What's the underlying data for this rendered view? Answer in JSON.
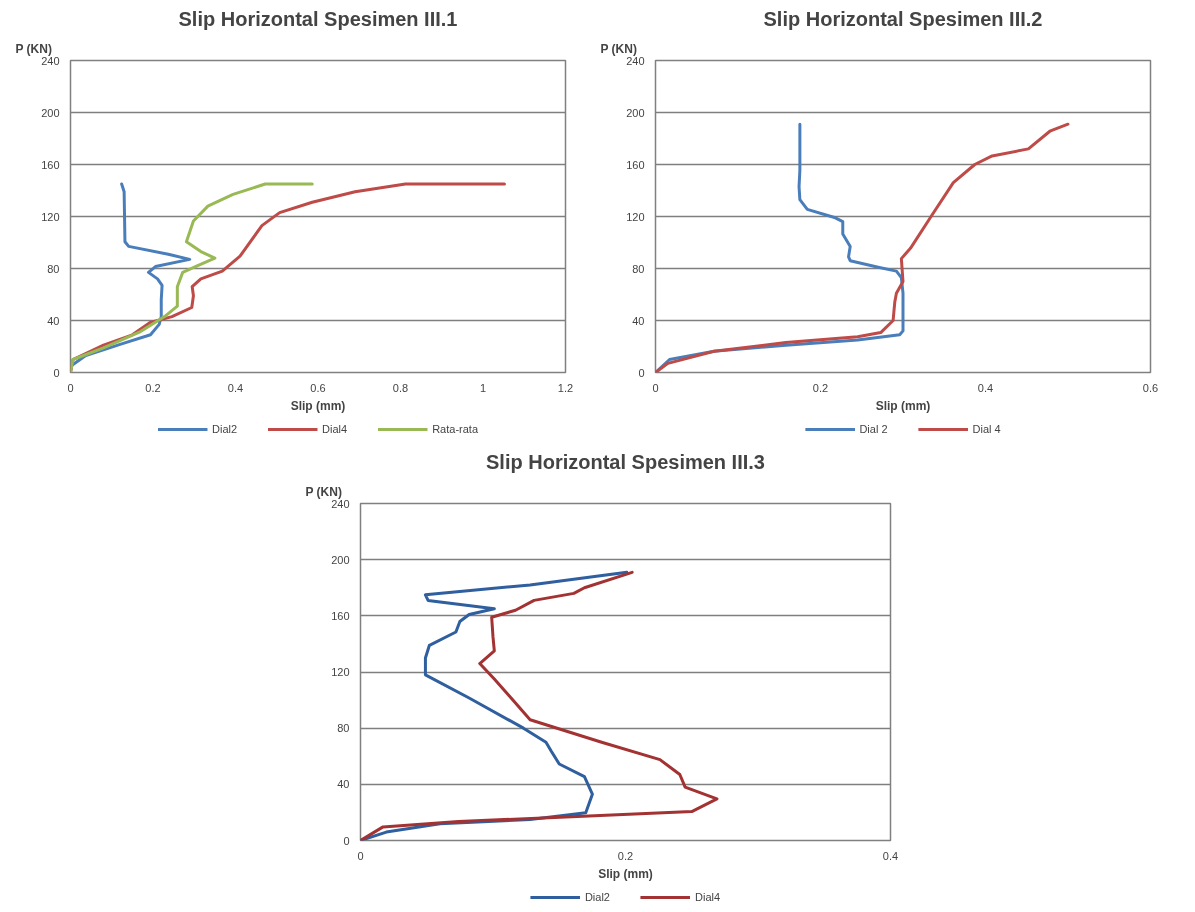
{
  "chart_data": [
    {
      "type": "line",
      "title": "Slip Horizontal Spesimen III.1",
      "xlabel": "Slip (mm)",
      "ylabel": "P (KN)",
      "xlim": [
        0,
        1.2
      ],
      "xticks": [
        0,
        0.2,
        0.4,
        0.6,
        0.8,
        1,
        1.2
      ],
      "ylim": [
        0,
        240
      ],
      "yticks": [
        0,
        40,
        80,
        120,
        160,
        200,
        240
      ],
      "grid": "y",
      "legend": "bottom",
      "marker": "none",
      "line_style": "solid",
      "series": [
        {
          "name": "Dial2",
          "color": "#4a7ebb",
          "x": [
            0,
            0.001,
            0.037,
            0.124,
            0.194,
            0.215,
            0.22,
            0.22,
            0.222,
            0.211,
            0.189,
            0.206,
            0.289,
            0.237,
            0.141,
            0.132,
            0.131,
            0.13,
            0.124
          ],
          "values": [
            0,
            5,
            13,
            22,
            29,
            37,
            43,
            56,
            67,
            72,
            77,
            81.5,
            87,
            91,
            97,
            100.6,
            120,
            139,
            145
          ]
        },
        {
          "name": "Dial4",
          "color": "#be4b48",
          "x": [
            0,
            0.006,
            0.08,
            0.15,
            0.193,
            0.246,
            0.294,
            0.298,
            0.295,
            0.316,
            0.368,
            0.411,
            0.464,
            0.507,
            0.586,
            0.69,
            0.812,
            0.847,
            1.052
          ],
          "values": [
            0,
            10,
            21,
            29,
            38.5,
            43,
            50,
            59,
            66,
            72,
            78,
            89.5,
            113,
            123,
            131,
            139,
            145,
            145,
            145
          ]
        },
        {
          "name": "Rata-rata",
          "color": "#98b954",
          "x": [
            0,
            0.006,
            0.08,
            0.167,
            0.228,
            0.259,
            0.259,
            0.272,
            0.307,
            0.35,
            0.316,
            0.281,
            0.298,
            0.333,
            0.394,
            0.472,
            0.49,
            0.586
          ],
          "values": [
            0,
            10,
            19,
            31,
            43,
            51,
            66,
            77,
            82,
            88,
            93,
            100.6,
            116.5,
            128,
            137,
            145,
            145,
            145
          ]
        }
      ]
    },
    {
      "type": "line",
      "title": "Slip Horizontal Spesimen III.2",
      "xlabel": "Slip (mm)",
      "ylabel": "P (KN)",
      "xlim": [
        0,
        0.6
      ],
      "xticks": [
        0,
        0.2,
        0.4,
        0.6
      ],
      "ylim": [
        0,
        240
      ],
      "yticks": [
        0,
        40,
        80,
        120,
        160,
        200,
        240
      ],
      "grid": "y",
      "legend": "bottom",
      "marker": "none",
      "line_style": "solid",
      "series": [
        {
          "name": "Dial 2",
          "color": "#4a7ebb",
          "x": [
            0,
            0.017,
            0.071,
            0.158,
            0.245,
            0.296,
            0.3,
            0.3,
            0.298,
            0.292,
            0.27,
            0.236,
            0.234,
            0.236,
            0.227,
            0.227,
            0.218,
            0.184,
            0.175,
            0.174,
            0.175,
            0.175
          ],
          "values": [
            0,
            10,
            16.4,
            21,
            25,
            29,
            32,
            61,
            73,
            78,
            81,
            86,
            89,
            97,
            106.5,
            116,
            119,
            125.5,
            133,
            143,
            155.6,
            191
          ]
        },
        {
          "name": "Dial 4",
          "color": "#be4b48",
          "x": [
            0,
            0.015,
            0.071,
            0.158,
            0.245,
            0.273,
            0.288,
            0.29,
            0.292,
            0.3,
            0.298,
            0.309,
            0.335,
            0.361,
            0.387,
            0.408,
            0.452,
            0.478,
            0.5
          ],
          "values": [
            0,
            7,
            16.4,
            23,
            27.5,
            30.7,
            40,
            54,
            61,
            70,
            87.6,
            95.5,
            121,
            146,
            160,
            166.6,
            172,
            185.6,
            191
          ]
        }
      ]
    },
    {
      "type": "line",
      "title": "Slip Horizontal Spesimen III.3",
      "xlabel": "Slip (mm)",
      "ylabel": "P (KN)",
      "xlim": [
        0,
        0.4
      ],
      "xticks": [
        0,
        0.2,
        0.4
      ],
      "ylim": [
        0,
        240
      ],
      "yticks": [
        0,
        40,
        80,
        120,
        160,
        200,
        240
      ],
      "grid": "y",
      "legend": "bottom",
      "marker": "none",
      "line_style": "solid",
      "series": [
        {
          "name": "Dial2",
          "color": "#2f5f9e",
          "x": [
            0,
            0.0195,
            0.06,
            0.128,
            0.17,
            0.175,
            0.169,
            0.15,
            0.144,
            0.14,
            0.123,
            0.082,
            0.049,
            0.049,
            0.052,
            0.072,
            0.075,
            0.082,
            0.101,
            0.051,
            0.049,
            0.128,
            0.201
          ],
          "values": [
            0,
            6,
            12,
            15,
            19.7,
            33,
            45.5,
            54.5,
            63.6,
            70,
            80,
            101.5,
            118,
            130,
            139,
            148.5,
            156,
            161,
            165,
            171,
            175,
            182,
            191
          ]
        },
        {
          "name": "Dial4",
          "color": "#a33233",
          "x": [
            0,
            0.017,
            0.074,
            0.155,
            0.25,
            0.269,
            0.245,
            0.241,
            0.226,
            0.182,
            0.128,
            0.115,
            0.101,
            0.09,
            0.101,
            0.1,
            0.099,
            0.117,
            0.131,
            0.161,
            0.169,
            0.205
          ],
          "values": [
            0,
            9.7,
            13.6,
            16.7,
            20.6,
            29.7,
            38,
            47,
            57.6,
            70,
            86,
            100,
            115,
            126,
            135,
            145,
            159,
            164,
            171,
            176,
            180,
            191
          ]
        }
      ]
    }
  ]
}
